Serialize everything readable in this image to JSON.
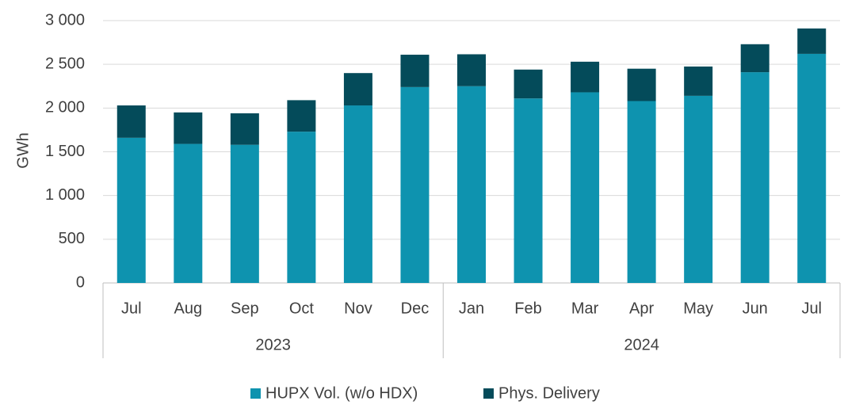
{
  "chart_data": {
    "type": "stacked-bar",
    "y_label": "GWh",
    "categories": [
      "Jul",
      "Aug",
      "Sep",
      "Oct",
      "Nov",
      "Dec",
      "Jan",
      "Feb",
      "Mar",
      "Apr",
      "May",
      "Jun",
      "Jul"
    ],
    "groups": [
      {
        "label": "2023",
        "span": 6
      },
      {
        "label": "2024",
        "span": 7
      }
    ],
    "series": [
      {
        "name": "HUPX Vol. (w/o HDX)",
        "color": "#0e93af",
        "values": [
          1660,
          1590,
          1580,
          1730,
          2030,
          2240,
          2250,
          2110,
          2180,
          2080,
          2140,
          2410,
          2620
        ]
      },
      {
        "name": "Phys. Delivery",
        "color": "#044b5a",
        "values": [
          370,
          360,
          360,
          360,
          370,
          370,
          365,
          330,
          350,
          370,
          335,
          320,
          290
        ]
      }
    ],
    "ylim": [
      0,
      3000
    ],
    "yticks": [
      0,
      500,
      {
        "value": 1000,
        "label": "1 000"
      },
      {
        "value": 1500,
        "label": "1 500"
      },
      {
        "value": 2000,
        "label": "2 000"
      },
      {
        "value": 2500,
        "label": "2 500"
      },
      {
        "value": 3000,
        "label": "3 000"
      }
    ],
    "grid": true,
    "legend": "bottom"
  }
}
